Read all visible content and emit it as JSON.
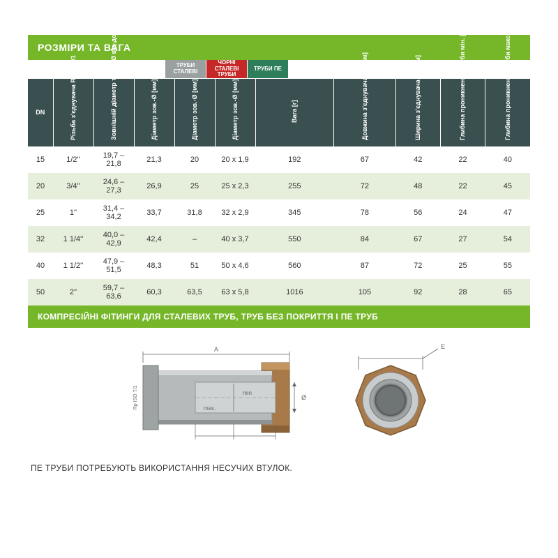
{
  "title": "РОЗМІРИ ТА ВАГА",
  "categories": {
    "gray": "ТРУБИ СТАЛЕВІ",
    "red": "ЧОРНІ СТАЛЕВІ ТРУБИ",
    "green": "ТРУБИ ПЕ"
  },
  "headers": [
    "DN",
    "Різьба з'єднувача R ISO 7/1",
    "Зовнішній діаметр тру­би-Ø від-до [мм]",
    "Діаметр зов.-Ø [мм]",
    "Діаметр зов.-Ø [мм]",
    "Діаметр зов.-Ø [мм]",
    "Вага [г]",
    "Довжина з'єднувача –A [мм]",
    "Ширина з'єднувача –E [мм]",
    "Глибина проникнення труби мін. [мм]",
    "Глибина проникнення труби макс. [мм]"
  ],
  "rows": [
    [
      "15",
      "1/2''",
      "19,7 – 21,8",
      "21,3",
      "20",
      "20 x 1,9",
      "192",
      "67",
      "42",
      "22",
      "40"
    ],
    [
      "20",
      "3/4''",
      "24,6 – 27,3",
      "26,9",
      "25",
      "25 x 2,3",
      "255",
      "72",
      "48",
      "22",
      "45"
    ],
    [
      "25",
      "1''",
      "31,4 – 34,2",
      "33,7",
      "31,8",
      "32 x 2,9",
      "345",
      "78",
      "56",
      "24",
      "47"
    ],
    [
      "32",
      "1 1/4''",
      "40,0 – 42,9",
      "42,4",
      "–",
      "40 x 3,7",
      "550",
      "84",
      "67",
      "27",
      "54"
    ],
    [
      "40",
      "1 1/2''",
      "47,9 – 51,5",
      "48,3",
      "51",
      "50 x 4,6",
      "560",
      "87",
      "72",
      "25",
      "55"
    ],
    [
      "50",
      "2''",
      "59,7 – 63,6",
      "60,3",
      "63,5",
      "63 x 5,8",
      "1016",
      "105",
      "92",
      "28",
      "65"
    ]
  ],
  "footer": "КОМПРЕСІЙНІ ФІТИНГИ ДЛЯ СТАЛЕВИХ ТРУБ, ТРУБ БЕЗ ПОКРИТТЯ І ПЕ ТРУБ",
  "note": "ПЕ ТРУБИ ПОТРЕБУЮТЬ ВИКОРИСТАННЯ НЕСУЧИХ ВТУЛОК.",
  "diagram": {
    "labels": {
      "A": "A",
      "E": "E",
      "min": "min",
      "max": "max.",
      "iso": "Rp ISO 7/1",
      "diam": "Ø"
    },
    "colors": {
      "body": "#b0b4b4",
      "body_dark": "#8e9494",
      "nut": "#a87a4a",
      "line": "#555555",
      "label": "#666666"
    }
  },
  "colors": {
    "accent": "#76b729",
    "header_bg": "#3a4f4f",
    "row_alt": "#e6efdb",
    "cat_gray": "#9aa0a0",
    "cat_red": "#c62828",
    "cat_green": "#2e7d5b"
  }
}
